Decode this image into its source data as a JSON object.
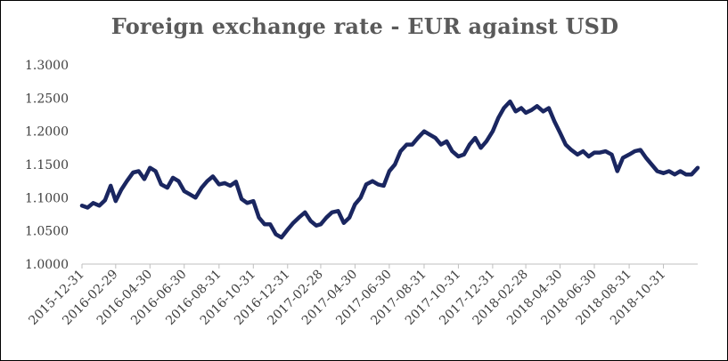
{
  "chart_data": {
    "type": "line",
    "title": "Foreign exchange rate - EUR against USD",
    "xlabel": "",
    "ylabel": "",
    "ylim": [
      1.0,
      1.3
    ],
    "y_ticks": [
      "1.0000",
      "1.0500",
      "1.1000",
      "1.1500",
      "1.2000",
      "1.2500",
      "1.3000"
    ],
    "x_ticks": [
      "2015-12-31",
      "2016-02-29",
      "2016-04-30",
      "2016-06-30",
      "2016-08-31",
      "2016-10-31",
      "2016-12-31",
      "2017-02-28",
      "2017-04-30",
      "2017-06-30",
      "2017-08-31",
      "2017-10-31",
      "2017-12-31",
      "2018-02-28",
      "2018-04-30",
      "2018-06-30",
      "2018-08-31",
      "2018-10-31"
    ],
    "x_range": [
      "2015-12-31",
      "2018-12-31"
    ],
    "grid": false,
    "series_color": "#1a2660",
    "series": [
      {
        "x": [
          "2015-12-31",
          "2016-01-10",
          "2016-01-20",
          "2016-01-31",
          "2016-02-10",
          "2016-02-20",
          "2016-02-29",
          "2016-03-10",
          "2016-03-20",
          "2016-03-31",
          "2016-04-10",
          "2016-04-20",
          "2016-04-30",
          "2016-05-10",
          "2016-05-20",
          "2016-05-31",
          "2016-06-10",
          "2016-06-20",
          "2016-06-30",
          "2016-07-10",
          "2016-07-20",
          "2016-07-31",
          "2016-08-10",
          "2016-08-20",
          "2016-08-31",
          "2016-09-10",
          "2016-09-20",
          "2016-09-30",
          "2016-10-10",
          "2016-10-20",
          "2016-10-31",
          "2016-11-10",
          "2016-11-20",
          "2016-11-30",
          "2016-12-10",
          "2016-12-20",
          "2016-12-31",
          "2017-01-10",
          "2017-01-20",
          "2017-01-31",
          "2017-02-10",
          "2017-02-20",
          "2017-02-28",
          "2017-03-10",
          "2017-03-20",
          "2017-03-31",
          "2017-04-10",
          "2017-04-20",
          "2017-04-30",
          "2017-05-10",
          "2017-05-20",
          "2017-05-31",
          "2017-06-10",
          "2017-06-20",
          "2017-06-30",
          "2017-07-10",
          "2017-07-20",
          "2017-07-31",
          "2017-08-10",
          "2017-08-20",
          "2017-08-31",
          "2017-09-10",
          "2017-09-20",
          "2017-09-30",
          "2017-10-10",
          "2017-10-20",
          "2017-10-31",
          "2017-11-10",
          "2017-11-20",
          "2017-11-30",
          "2017-12-10",
          "2017-12-20",
          "2017-12-31",
          "2018-01-10",
          "2018-01-20",
          "2018-01-31",
          "2018-02-10",
          "2018-02-20",
          "2018-02-28",
          "2018-03-10",
          "2018-03-20",
          "2018-03-31",
          "2018-04-10",
          "2018-04-20",
          "2018-04-30",
          "2018-05-10",
          "2018-05-20",
          "2018-05-31",
          "2018-06-10",
          "2018-06-20",
          "2018-06-30",
          "2018-07-10",
          "2018-07-20",
          "2018-07-31",
          "2018-08-10",
          "2018-08-20",
          "2018-08-31",
          "2018-09-10",
          "2018-09-20",
          "2018-09-30",
          "2018-10-10",
          "2018-10-20",
          "2018-10-31",
          "2018-11-10",
          "2018-11-20",
          "2018-11-30",
          "2018-12-10",
          "2018-12-20",
          "2018-12-31"
        ],
        "values": [
          1.088,
          1.085,
          1.092,
          1.088,
          1.096,
          1.118,
          1.095,
          1.112,
          1.125,
          1.138,
          1.14,
          1.128,
          1.145,
          1.14,
          1.12,
          1.115,
          1.13,
          1.125,
          1.11,
          1.105,
          1.1,
          1.115,
          1.125,
          1.132,
          1.12,
          1.122,
          1.118,
          1.124,
          1.098,
          1.092,
          1.095,
          1.07,
          1.06,
          1.06,
          1.045,
          1.04,
          1.052,
          1.062,
          1.07,
          1.078,
          1.065,
          1.058,
          1.06,
          1.07,
          1.078,
          1.08,
          1.062,
          1.07,
          1.09,
          1.1,
          1.12,
          1.125,
          1.12,
          1.118,
          1.14,
          1.15,
          1.17,
          1.18,
          1.18,
          1.19,
          1.2,
          1.195,
          1.19,
          1.18,
          1.185,
          1.17,
          1.162,
          1.165,
          1.18,
          1.19,
          1.175,
          1.185,
          1.2,
          1.22,
          1.235,
          1.245,
          1.23,
          1.235,
          1.228,
          1.232,
          1.238,
          1.23,
          1.235,
          1.215,
          1.198,
          1.18,
          1.172,
          1.165,
          1.17,
          1.162,
          1.168,
          1.168,
          1.17,
          1.165,
          1.14,
          1.16,
          1.165,
          1.17,
          1.172,
          1.16,
          1.15,
          1.14,
          1.137,
          1.14,
          1.135,
          1.14,
          1.135,
          1.135,
          1.145
        ]
      }
    ]
  }
}
